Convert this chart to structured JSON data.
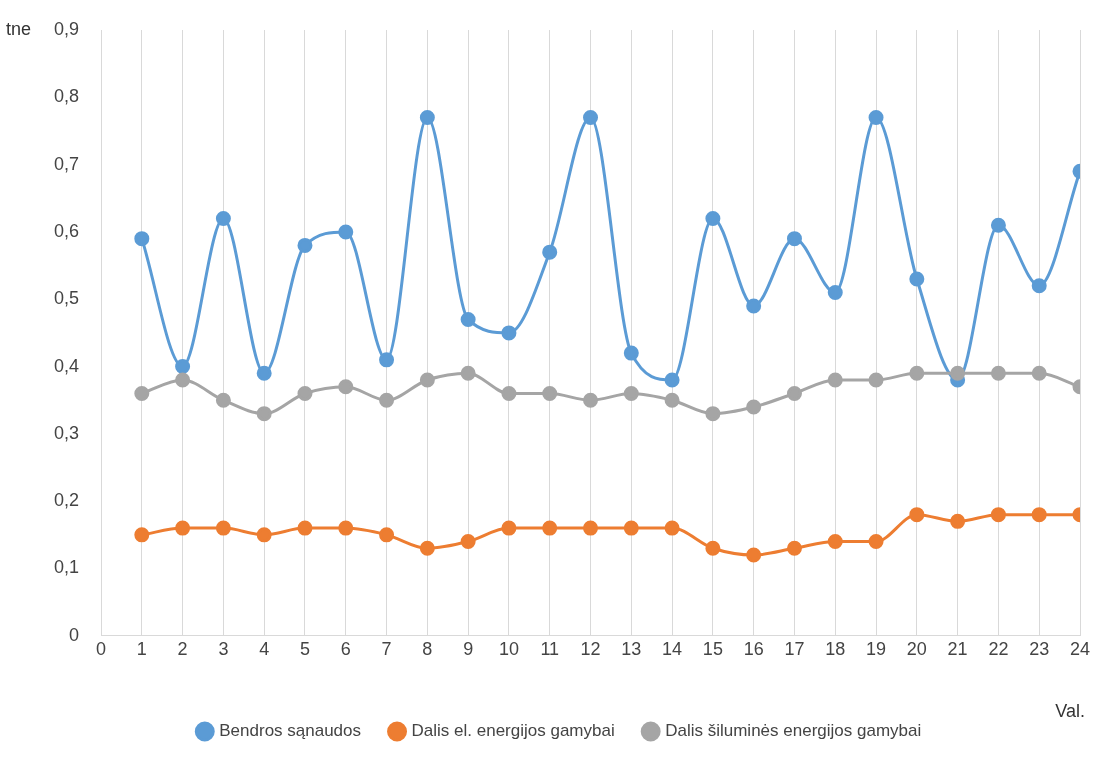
{
  "chart_data": {
    "type": "line",
    "xlabel": "Val.",
    "ylabel": "tne",
    "x": [
      1,
      2,
      3,
      4,
      5,
      6,
      7,
      8,
      9,
      10,
      11,
      12,
      13,
      14,
      15,
      16,
      17,
      18,
      19,
      20,
      21,
      22,
      23,
      24
    ],
    "series": [
      {
        "name": "Bendros sąnaudos",
        "color": "#5b9bd5",
        "values": [
          0.59,
          0.4,
          0.62,
          0.39,
          0.58,
          0.6,
          0.41,
          0.77,
          0.47,
          0.45,
          0.57,
          0.77,
          0.42,
          0.38,
          0.62,
          0.49,
          0.59,
          0.51,
          0.77,
          0.53,
          0.38,
          0.61,
          0.52,
          0.69
        ]
      },
      {
        "name": "Dalis el. energijos gamybai",
        "color": "#ed7d31",
        "values": [
          0.15,
          0.16,
          0.16,
          0.15,
          0.16,
          0.16,
          0.15,
          0.13,
          0.14,
          0.16,
          0.16,
          0.16,
          0.16,
          0.16,
          0.13,
          0.12,
          0.13,
          0.14,
          0.14,
          0.18,
          0.17,
          0.18,
          0.18,
          0.18
        ]
      },
      {
        "name": "Dalis šiluminės energijos gamybai",
        "color": "#a5a5a5",
        "values": [
          0.36,
          0.38,
          0.35,
          0.33,
          0.36,
          0.37,
          0.35,
          0.38,
          0.39,
          0.36,
          0.36,
          0.35,
          0.36,
          0.35,
          0.33,
          0.34,
          0.36,
          0.38,
          0.38,
          0.39,
          0.39,
          0.39,
          0.39,
          0.37
        ]
      }
    ],
    "xlim": [
      0,
      24
    ],
    "xticks": [
      0,
      1,
      2,
      3,
      4,
      5,
      6,
      7,
      8,
      9,
      10,
      11,
      12,
      13,
      14,
      15,
      16,
      17,
      18,
      19,
      20,
      21,
      22,
      23,
      24
    ],
    "ylim": [
      0,
      0.9
    ],
    "yticks": [
      0,
      {
        "value": 0.1,
        "label": "0,1"
      },
      {
        "value": 0.2,
        "label": "0,2"
      },
      {
        "value": 0.3,
        "label": "0,3"
      },
      {
        "value": 0.4,
        "label": "0,4"
      },
      {
        "value": 0.5,
        "label": "0,5"
      },
      {
        "value": 0.6,
        "label": "0,6"
      },
      {
        "value": 0.7,
        "label": "0,7"
      },
      {
        "value": 0.8,
        "label": "0,8"
      },
      {
        "value": 0.9,
        "label": "0,9"
      }
    ],
    "grid": "x",
    "legend": "bottom",
    "marker": "circle",
    "line_style": "solid"
  }
}
